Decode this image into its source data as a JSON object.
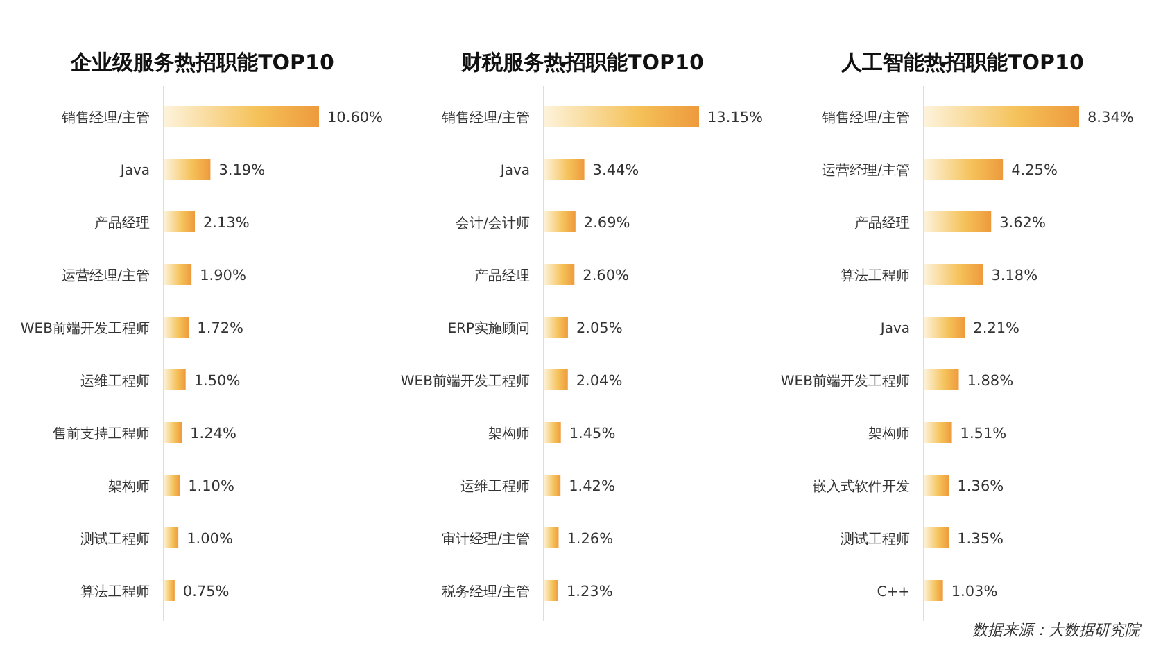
{
  "chart_data": [
    {
      "type": "bar",
      "orientation": "horizontal",
      "title": "企业级服务热招职能TOP10",
      "color": "#ee9a3c",
      "categories": [
        "销售经理/主管",
        "Java",
        "产品经理",
        "运营经理/主管",
        "WEB前端开发工程师",
        "运维工程师",
        "售前支持工程师",
        "架构师",
        "测试工程师",
        "算法工程师"
      ],
      "values": [
        10.6,
        3.19,
        2.13,
        1.9,
        1.72,
        1.5,
        1.24,
        1.1,
        1.0,
        0.75
      ],
      "value_labels": [
        "10.60%",
        "3.19%",
        "2.13%",
        "1.90%",
        "1.72%",
        "1.50%",
        "1.24%",
        "1.10%",
        "1.00%",
        "0.75%"
      ]
    },
    {
      "type": "bar",
      "orientation": "horizontal",
      "title": "财税服务热招职能TOP10",
      "color": "#ee9a3c",
      "categories": [
        "销售经理/主管",
        "Java",
        "会计/会计师",
        "产品经理",
        "ERP实施顾问",
        "WEB前端开发工程师",
        "架构师",
        "运维工程师",
        "审计经理/主管",
        "税务经理/主管"
      ],
      "values": [
        13.15,
        3.44,
        2.69,
        2.6,
        2.05,
        2.04,
        1.45,
        1.42,
        1.26,
        1.23
      ],
      "value_labels": [
        "13.15%",
        "3.44%",
        "2.69%",
        "2.60%",
        "2.05%",
        "2.04%",
        "1.45%",
        "1.42%",
        "1.26%",
        "1.23%"
      ]
    },
    {
      "type": "bar",
      "orientation": "horizontal",
      "title": "人工智能热招职能TOP10",
      "color": "#ee9a3c",
      "categories": [
        "销售经理/主管",
        "运营经理/主管",
        "产品经理",
        "算法工程师",
        "Java",
        "WEB前端开发工程师",
        "架构师",
        "嵌入式软件开发",
        "测试工程师",
        "C++"
      ],
      "values": [
        8.34,
        4.25,
        3.62,
        3.18,
        2.21,
        1.88,
        1.51,
        1.36,
        1.35,
        1.03
      ],
      "value_labels": [
        "8.34%",
        "4.25%",
        "3.62%",
        "3.18%",
        "2.21%",
        "1.88%",
        "1.51%",
        "1.36%",
        "1.35%",
        "1.03%"
      ],
      "annotations": [
        "数据来源：大数据研究院"
      ]
    }
  ]
}
